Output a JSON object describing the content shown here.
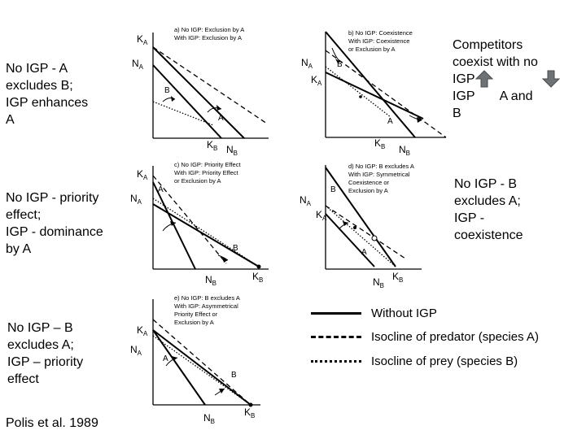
{
  "notes": {
    "a": "No IGP - A\nexcludes B;\nIGP enhances\nA",
    "b_line1": "Competitors",
    "b_line2": "coexist with no",
    "b_line3": "IGP",
    "b_line4a": "IGP",
    "b_line4b": "A and",
    "b_line5": "B",
    "c": "No IGP - priority\neffect;\nIGP - dominance\nby A",
    "d": "No IGP - B\nexcludes A;\nIGP -\ncoexistence",
    "e": "No IGP – B\nexcludes A;\nIGP – priority\neffect"
  },
  "source": "Polis et al. 1989",
  "legend": [
    {
      "label": "Without IGP",
      "style": "solid"
    },
    {
      "label": "Isocline of predator (species A)",
      "style": "dashed"
    },
    {
      "label": "Isocline of prey (species B)",
      "style": "dotted"
    }
  ],
  "axes": {
    "y_letter": "N",
    "y_sub": "A",
    "x_letter": "N",
    "x_sub": "B",
    "k_letter": "K",
    "ka_sub": "A",
    "kb_sub": "B"
  },
  "curve_labels": {
    "a": "A",
    "b": "B"
  },
  "panels": {
    "a": {
      "title1": "a) No IGP: Exclusion by A",
      "title2": "With IGP: Exclusion by A"
    },
    "b": {
      "title1": "b) No IGP: Coexistence",
      "title2": "With IGP: Coexistence",
      "title3": "or Exclusion by A"
    },
    "c": {
      "title1": "c) No IGP: Priority Effect",
      "title2": "With IGP: Priority Effect",
      "title3": "or Exclusion by A"
    },
    "d": {
      "title1": "d) No IGP: B excludes A",
      "title2": "With IGP: Symmetrical",
      "title3": "Coexistence or",
      "title4": "Exclusion by A"
    },
    "e": {
      "title1": "e) No IGP: B excludes A",
      "title2": "With IGP: Asymmetrical",
      "title3": "Priority Effect or",
      "title4": "Exclusion by A"
    }
  },
  "colors": {
    "arrow_fill": "#6f7275",
    "arrow_stroke": "#4a4c4e"
  }
}
